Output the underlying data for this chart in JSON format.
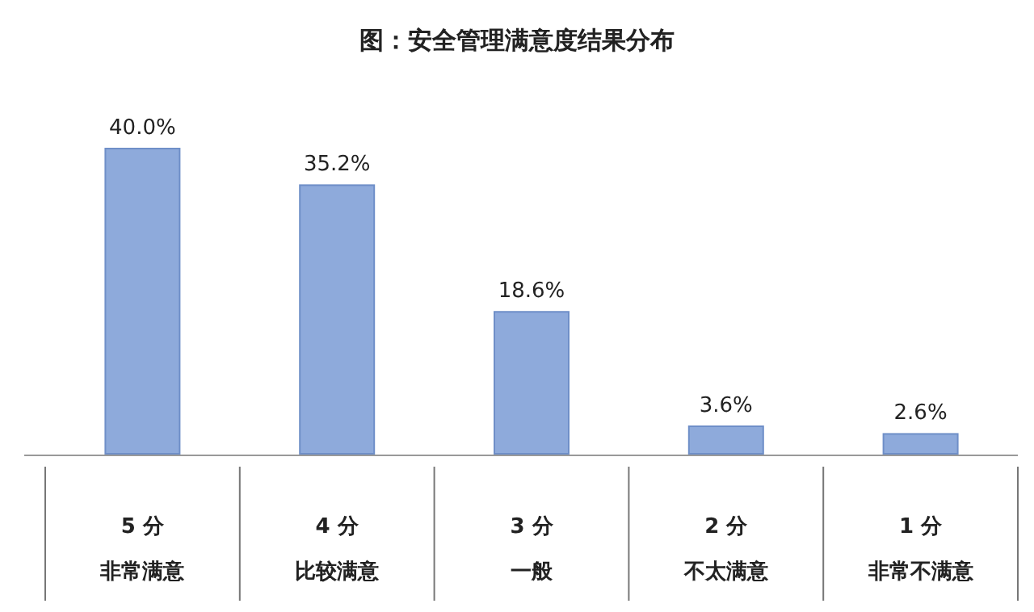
{
  "chart_data": {
    "type": "bar",
    "title": "图：安全管理满意度结果分布",
    "categories": [
      "5 分非常满意",
      "4 分比较满意",
      "3 分一般",
      "2 分不太满意",
      "1 分非常不满意"
    ],
    "values": [
      40.0,
      35.2,
      18.6,
      3.6,
      2.6
    ],
    "value_labels": [
      "40.0%",
      "35.2%",
      "18.6%",
      "3.6%",
      "2.6%"
    ],
    "color": "#8eaadb"
  }
}
